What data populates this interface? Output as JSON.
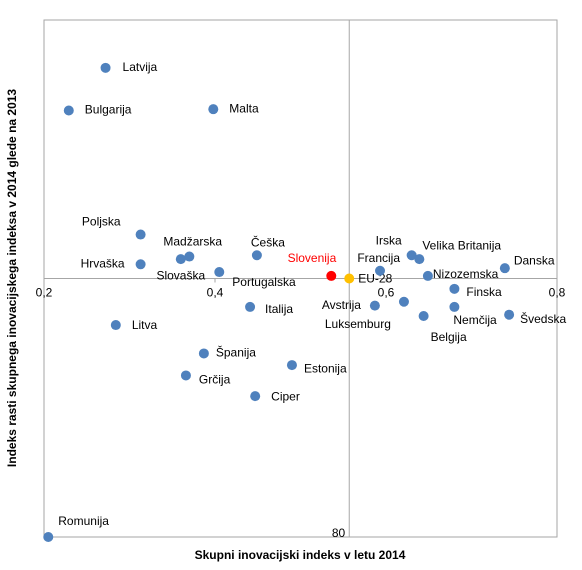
{
  "chart_data": {
    "type": "scatter",
    "xlabel": "Skupni inovacijski indeks v letu 2014",
    "ylabel": "Indeks rasti skupnega inovacijskega indeksa v 2014 glede na 2013",
    "xlim": [
      0.2,
      0.8
    ],
    "ylim": [
      80,
      120
    ],
    "xticks": [
      {
        "value": 0.2,
        "label": "0,2"
      },
      {
        "value": 0.4,
        "label": "0,4"
      },
      {
        "value": 0.6,
        "label": "0,6"
      },
      {
        "value": 0.8,
        "label": "0,8"
      }
    ],
    "yticks": [
      80
    ],
    "x_axis_at": 100,
    "y_axis_at": 0.557,
    "labels": [
      "Latvija",
      "Bulgarija",
      "Malta",
      "Poljska",
      "Hrvaška",
      "Madžarska",
      "Slovaška",
      "Portugalska",
      "Češka",
      "Slovenija",
      "EU-28",
      "Francija",
      "Irska",
      "Velika Britanija",
      "Danska",
      "Nizozemska",
      "Finska",
      "Avstrija",
      "Luksemburg",
      "Belgija",
      "Nemčija",
      "Švedska",
      "Italija",
      "Litva",
      "Španija",
      "Estonija",
      "Grčija",
      "Ciper",
      "Romunija"
    ],
    "x": [
      0.272,
      0.229,
      0.398,
      0.313,
      0.313,
      0.37,
      0.36,
      0.405,
      0.449,
      0.536,
      0.557,
      0.593,
      0.63,
      0.639,
      0.739,
      0.649,
      0.68,
      0.621,
      0.587,
      0.644,
      0.68,
      0.744,
      0.441,
      0.284,
      0.387,
      0.49,
      0.366,
      0.447,
      0.205
    ],
    "y": [
      116.3,
      113.0,
      113.1,
      103.4,
      101.1,
      101.7,
      101.5,
      100.5,
      101.8,
      100.2,
      100.0,
      100.6,
      101.8,
      101.5,
      100.8,
      100.2,
      99.2,
      98.2,
      97.9,
      97.1,
      97.8,
      97.2,
      97.8,
      96.4,
      94.2,
      93.3,
      92.5,
      90.9,
      80.0
    ],
    "colors": [
      "#4f81bd",
      "#4f81bd",
      "#4f81bd",
      "#4f81bd",
      "#4f81bd",
      "#4f81bd",
      "#4f81bd",
      "#4f81bd",
      "#4f81bd",
      "#ff0000",
      "#ffc000",
      "#4f81bd",
      "#4f81bd",
      "#4f81bd",
      "#4f81bd",
      "#4f81bd",
      "#4f81bd",
      "#4f81bd",
      "#4f81bd",
      "#4f81bd",
      "#4f81bd",
      "#4f81bd",
      "#4f81bd",
      "#4f81bd",
      "#4f81bd",
      "#4f81bd",
      "#4f81bd",
      "#4f81bd",
      "#4f81bd"
    ]
  }
}
